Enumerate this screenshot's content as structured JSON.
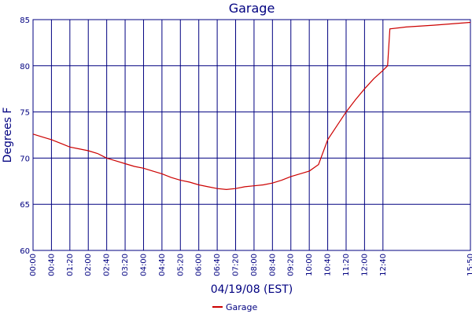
{
  "colors": {
    "grid": "#000080",
    "series": "#cc0000",
    "background": "#ffffff",
    "text": "#000080"
  },
  "chart_data": {
    "type": "line",
    "title": "Garage",
    "xlabel": "04/19/08 (EST)",
    "ylabel": "Degrees F",
    "ylim": [
      60,
      85
    ],
    "yticks": [
      60,
      65,
      70,
      75,
      80,
      85
    ],
    "xlim": [
      "00:00",
      "15:50"
    ],
    "xticks": [
      "00:00",
      "00:40",
      "01:20",
      "02:00",
      "02:40",
      "03:20",
      "04:00",
      "04:40",
      "05:20",
      "06:00",
      "06:40",
      "07:20",
      "08:00",
      "08:40",
      "09:20",
      "10:00",
      "10:40",
      "11:20",
      "12:00",
      "12:40",
      "15:50"
    ],
    "grid": true,
    "legend_position": "bottom-center",
    "series": [
      {
        "name": "Garage",
        "points": [
          [
            "00:00",
            72.6
          ],
          [
            "00:20",
            72.3
          ],
          [
            "00:40",
            72.0
          ],
          [
            "01:00",
            71.6
          ],
          [
            "01:20",
            71.2
          ],
          [
            "01:40",
            71.0
          ],
          [
            "02:00",
            70.8
          ],
          [
            "02:20",
            70.5
          ],
          [
            "02:40",
            70.0
          ],
          [
            "03:00",
            69.7
          ],
          [
            "03:20",
            69.4
          ],
          [
            "03:40",
            69.1
          ],
          [
            "04:00",
            68.9
          ],
          [
            "04:20",
            68.6
          ],
          [
            "04:40",
            68.3
          ],
          [
            "05:00",
            67.9
          ],
          [
            "05:20",
            67.6
          ],
          [
            "05:40",
            67.4
          ],
          [
            "06:00",
            67.1
          ],
          [
            "06:20",
            66.9
          ],
          [
            "06:40",
            66.7
          ],
          [
            "07:00",
            66.6
          ],
          [
            "07:20",
            66.7
          ],
          [
            "07:40",
            66.9
          ],
          [
            "08:00",
            67.0
          ],
          [
            "08:20",
            67.1
          ],
          [
            "08:40",
            67.3
          ],
          [
            "09:00",
            67.6
          ],
          [
            "09:20",
            68.0
          ],
          [
            "09:40",
            68.3
          ],
          [
            "10:00",
            68.6
          ],
          [
            "10:20",
            69.3
          ],
          [
            "10:40",
            72.0
          ],
          [
            "11:00",
            73.5
          ],
          [
            "11:20",
            75.0
          ],
          [
            "11:40",
            76.3
          ],
          [
            "12:00",
            77.5
          ],
          [
            "12:20",
            78.6
          ],
          [
            "12:40",
            79.5
          ],
          [
            "12:50",
            80.0
          ],
          [
            "12:55",
            84.0
          ],
          [
            "13:30",
            84.2
          ],
          [
            "14:30",
            84.4
          ],
          [
            "15:50",
            84.7
          ]
        ]
      }
    ]
  }
}
